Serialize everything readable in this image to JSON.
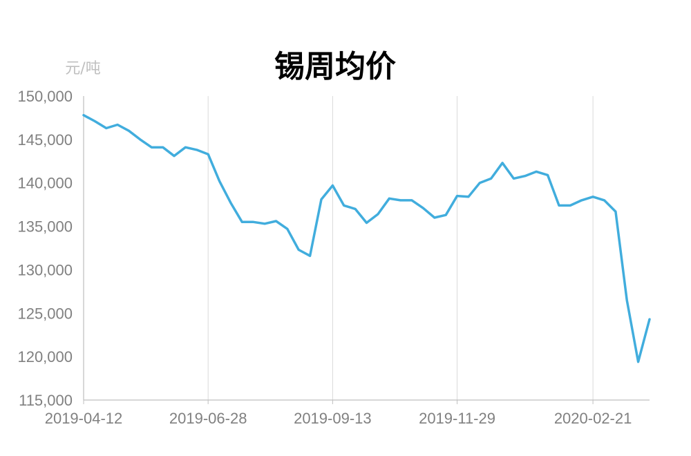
{
  "chart_data": {
    "type": "line",
    "title": "锡周均价",
    "ylabel": "元/吨",
    "xlabel": "",
    "ylim": [
      115000,
      150000
    ],
    "yticks": [
      "115,000",
      "120,000",
      "125,000",
      "130,000",
      "135,000",
      "140,000",
      "145,000",
      "150,000"
    ],
    "xticks": [
      "2019-04-12",
      "2019-06-28",
      "2019-09-13",
      "2019-11-29",
      "2020-02-21"
    ],
    "grid": "vertical",
    "legend": "none",
    "series": [
      {
        "color": "#41addd",
        "x": [
          "2019-04-12",
          "2019-04-19",
          "2019-04-26",
          "2019-05-03",
          "2019-05-10",
          "2019-05-17",
          "2019-05-24",
          "2019-05-31",
          "2019-06-07",
          "2019-06-14",
          "2019-06-21",
          "2019-06-28",
          "2019-07-05",
          "2019-07-12",
          "2019-07-19",
          "2019-07-26",
          "2019-08-02",
          "2019-08-09",
          "2019-08-16",
          "2019-08-23",
          "2019-08-30",
          "2019-09-06",
          "2019-09-13",
          "2019-09-20",
          "2019-09-27",
          "2019-10-04",
          "2019-10-11",
          "2019-10-18",
          "2019-10-25",
          "2019-11-01",
          "2019-11-08",
          "2019-11-15",
          "2019-11-22",
          "2019-11-29",
          "2019-12-06",
          "2019-12-13",
          "2019-12-20",
          "2019-12-27",
          "2020-01-03",
          "2020-01-10",
          "2020-01-17",
          "2020-01-24",
          "2020-01-31",
          "2020-02-07",
          "2020-02-14",
          "2020-02-21",
          "2020-02-28",
          "2020-03-06",
          "2020-03-13",
          "2020-03-20",
          "2020-03-27"
        ],
        "values": [
          147800,
          147100,
          146300,
          146700,
          146000,
          145000,
          144100,
          144100,
          143100,
          144100,
          143800,
          143300,
          140200,
          137700,
          135500,
          135500,
          135300,
          135600,
          134700,
          132300,
          131600,
          138100,
          139700,
          137400,
          137000,
          135400,
          136400,
          138200,
          138000,
          138000,
          137100,
          136000,
          136300,
          138500,
          138400,
          140000,
          140500,
          142300,
          140500,
          140800,
          141300,
          140900,
          137400,
          137400,
          138000,
          138400,
          138000,
          136700,
          126500,
          119400,
          124300
        ]
      }
    ]
  }
}
